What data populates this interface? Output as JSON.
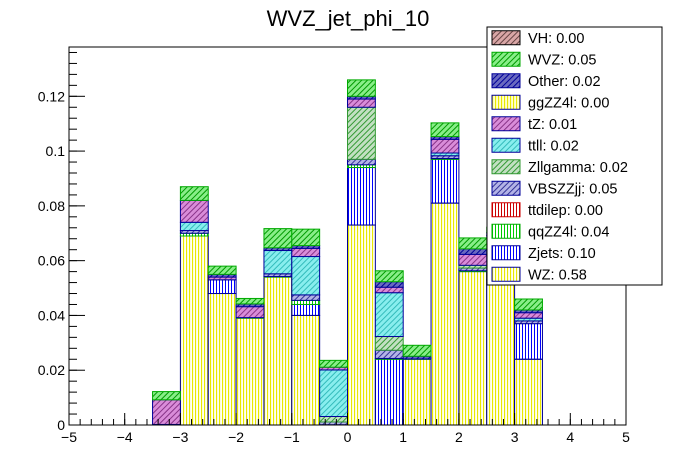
{
  "chart_data": {
    "type": "bar",
    "stacked": true,
    "title": "WVZ_jet_phi_10",
    "xlabel": "",
    "ylabel": "",
    "xlim": [
      -5,
      5
    ],
    "ylim": [
      0,
      0.138
    ],
    "x_ticks": [
      -5,
      -4,
      -3,
      -2,
      -1,
      0,
      1,
      2,
      3,
      4,
      5
    ],
    "y_ticks": [
      0,
      0.02,
      0.04,
      0.06,
      0.08,
      0.1,
      0.12
    ],
    "x_tick_labels": [
      "−5",
      "−4",
      "−3",
      "−2",
      "−1",
      "0",
      "1",
      "2",
      "3",
      "4",
      "5"
    ],
    "y_tick_labels": [
      "0",
      "0.02",
      "0.04",
      "0.06",
      "0.08",
      "0.1",
      "0.12"
    ],
    "bins": [
      -3.5,
      -3.0,
      -2.5,
      -2.0,
      -1.5,
      -1.0,
      -0.5,
      0.0,
      0.5,
      1.0,
      1.5,
      2.0,
      2.5,
      3.0,
      3.5
    ],
    "legend_placement": "top-right",
    "series": [
      {
        "name": "WZ",
        "legend": "WZ: 0.58",
        "color": "#ffff66",
        "border": "#000099",
        "values": [
          0.0,
          0.069,
          0.048,
          0.039,
          0.054,
          0.04,
          0.0,
          0.073,
          0.0,
          0.024,
          0.081,
          0.056,
          0.053,
          0.024,
          0.0
        ]
      },
      {
        "name": "Zjets",
        "legend": "Zjets: 0.10",
        "color": "#0000ff",
        "border": "#000099",
        "values": [
          0.0,
          0.0,
          0.005,
          0.0,
          0.0,
          0.004,
          0.0,
          0.021,
          0.024,
          0.0,
          0.016,
          0.0,
          0.014,
          0.013,
          0.0
        ]
      },
      {
        "name": "qqZZ4l",
        "legend": "qqZZ4l: 0.04",
        "color": "#00cc00",
        "border": "#00aa00",
        "values": [
          0.0002,
          0.001,
          0.0,
          0.0002,
          0.0002,
          0.0015,
          0.0001,
          0.001,
          0.0003,
          0.0001,
          0.0003,
          0.0003,
          0.0002,
          0.0,
          0.0003
        ]
      },
      {
        "name": "ttdilep",
        "legend": "ttdilep: 0.00",
        "color": "#cc0000",
        "border": "#cc0000",
        "values": [
          0,
          0,
          0,
          0,
          0,
          0,
          0,
          0,
          0,
          0,
          0,
          0,
          0,
          0,
          0
        ]
      },
      {
        "name": "VBSZZjj",
        "legend": "VBSZZjj: 0.05",
        "color": "#6666cc",
        "border": "#000099",
        "values": [
          0.0,
          0.001,
          0.0,
          0.0,
          0.001,
          0.002,
          0.001,
          0.002,
          0.003,
          0.0,
          0.001,
          0.001,
          0.002,
          0.001,
          0.0
        ]
      },
      {
        "name": "Zllgamma",
        "legend": "Zllgamma: 0.02",
        "color": "#99cc99",
        "border": "#339933",
        "values": [
          0.0,
          0.0,
          0.0,
          0.0,
          0.0,
          0.0,
          0.002,
          0.019,
          0.005,
          0.0,
          0.0,
          0.001,
          0.0,
          0.0,
          0.0
        ]
      },
      {
        "name": "ttll",
        "legend": "ttll: 0.02",
        "color": "#66e6e6",
        "border": "#000099",
        "values": [
          0.0,
          0.003,
          0.0,
          0.0,
          0.0085,
          0.014,
          0.017,
          0.0,
          0.016,
          0.0,
          0.001,
          0.0,
          0.0,
          0.001,
          0.0
        ]
      },
      {
        "name": "tZ",
        "legend": "tZ: 0.01",
        "color": "#cc66cc",
        "border": "#000099",
        "values": [
          0.009,
          0.008,
          0.001,
          0.004,
          0.0,
          0.003,
          0.001,
          0.003,
          0.002,
          0.0,
          0.005,
          0.004,
          0.001,
          0.002,
          0.0
        ]
      },
      {
        "name": "ggZZ4l",
        "legend": "ggZZ4l: 0.00",
        "color": "#ffff66",
        "border": "#000099",
        "values": [
          0,
          0,
          0,
          0,
          0,
          0,
          0,
          0,
          0,
          0,
          0,
          0,
          0,
          0,
          0
        ]
      },
      {
        "name": "Other",
        "legend": "Other: 0.02",
        "color": "#000099",
        "border": "#000099",
        "values": [
          0.0,
          0.0,
          0.001,
          0.001,
          0.001,
          0.001,
          0.0,
          0.001,
          0.002,
          0.001,
          0.001,
          0.002,
          0.0,
          0.001,
          0.0
        ]
      },
      {
        "name": "WVZ",
        "legend": "WVZ: 0.05",
        "color": "#66e666",
        "border": "#00aa00",
        "values": [
          0.003,
          0.005,
          0.003,
          0.002,
          0.007,
          0.006,
          0.0025,
          0.006,
          0.004,
          0.004,
          0.005,
          0.004,
          0.002,
          0.004,
          0.0003
        ]
      },
      {
        "name": "VH",
        "legend": "VH: 0.00",
        "color": "#cc9999",
        "border": "#000000",
        "values": [
          0,
          0,
          0,
          0,
          0,
          0,
          0,
          0,
          0,
          0,
          0,
          0,
          0,
          0,
          0
        ]
      }
    ]
  }
}
